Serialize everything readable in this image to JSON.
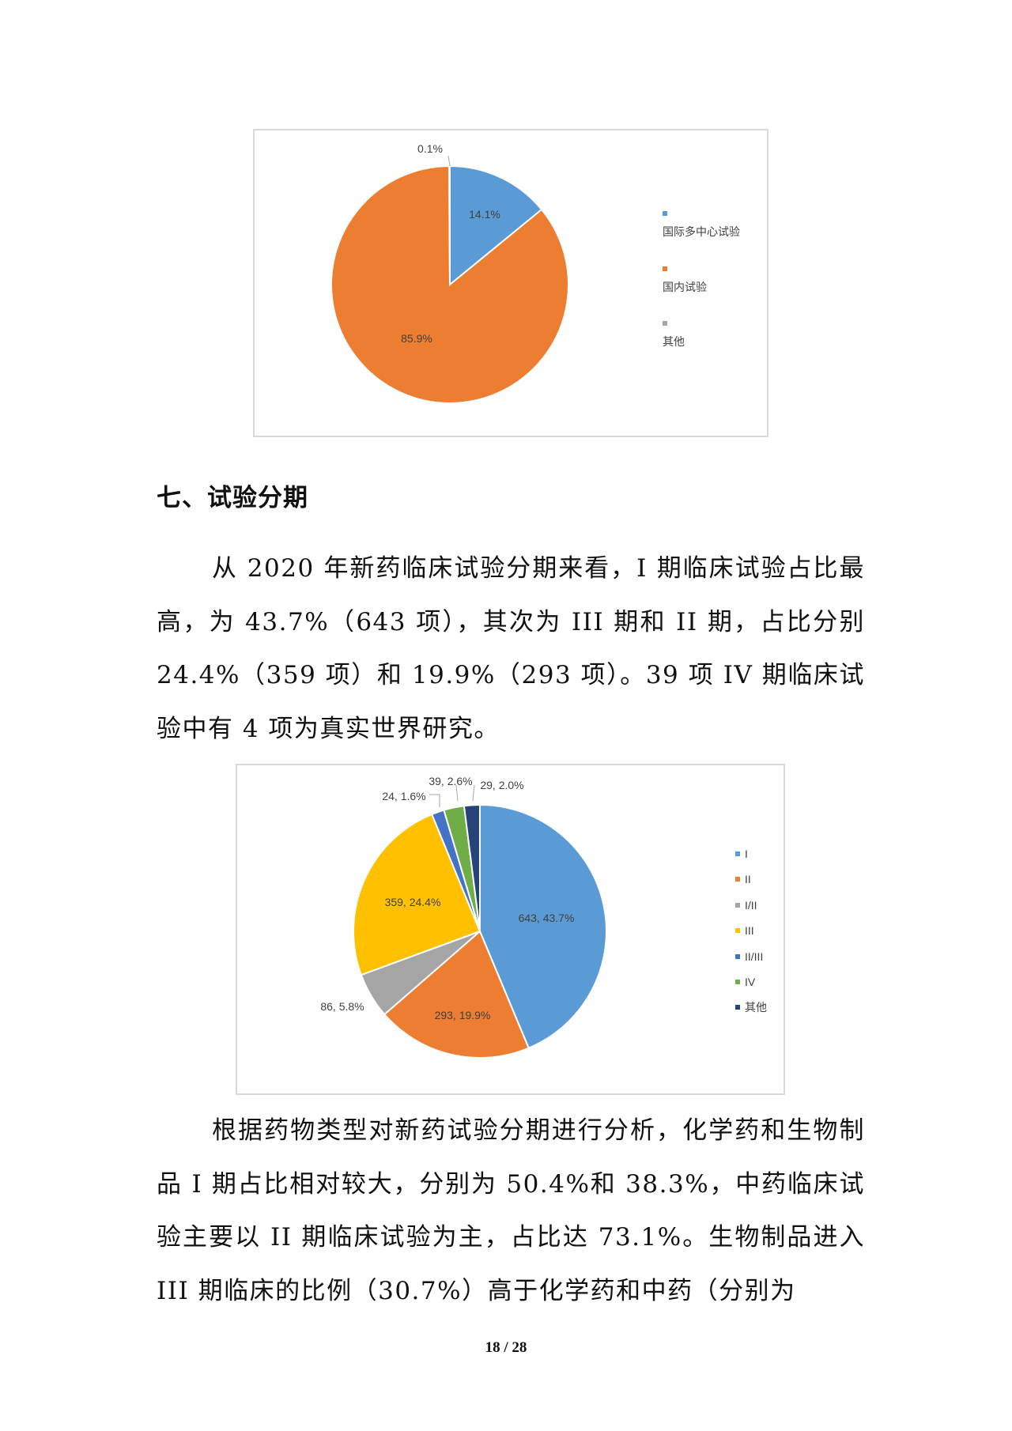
{
  "heading": "七、试验分期",
  "paragraph1": "从 2020 年新药临床试验分期来看，I 期临床试验占比最高，为 43.7%（643 项），其次为 III 期和 II 期，占比分别 24.4%（359 项）和 19.9%（293 项）。39 项 IV 期临床试验中有 4 项为真实世界研究。",
  "paragraph2": "根据药物类型对新药试验分期进行分析，化学药和生物制品 I 期占比相对较大，分别为 50.4%和 38.3%，中药临床试验主要以 II 期临床试验为主，占比达 73.1%。生物制品进入 III 期临床的比例（30.7%）高于化学药和中药（分别为",
  "page_number": "18 / 28",
  "chart_data": [
    {
      "type": "pie",
      "legend_position": "right",
      "categories": [
        "国际多中心试验",
        "国内试验",
        "其他"
      ],
      "values": [
        14.1,
        85.9,
        0.1
      ],
      "labels": [
        "14.1%",
        "85.9%",
        "0.1%"
      ],
      "colors": [
        "#5B9BD5",
        "#ED7D31",
        "#A5A5A5"
      ]
    },
    {
      "type": "pie",
      "legend_position": "right",
      "categories": [
        "I",
        "II",
        "I/II",
        "III",
        "II/III",
        "IV",
        "其他"
      ],
      "counts": [
        643,
        293,
        86,
        359,
        24,
        39,
        29
      ],
      "values": [
        43.7,
        19.9,
        5.8,
        24.4,
        1.6,
        2.6,
        2.0
      ],
      "labels": [
        "643, 43.7%",
        "293, 19.9%",
        "86, 5.8%",
        "359, 24.4%",
        "24, 1.6%",
        "39, 2.6%",
        "29, 2.0%"
      ],
      "colors": [
        "#5B9BD5",
        "#ED7D31",
        "#A5A5A5",
        "#FFC000",
        "#4472C4",
        "#70AD47",
        "#264478"
      ]
    }
  ]
}
